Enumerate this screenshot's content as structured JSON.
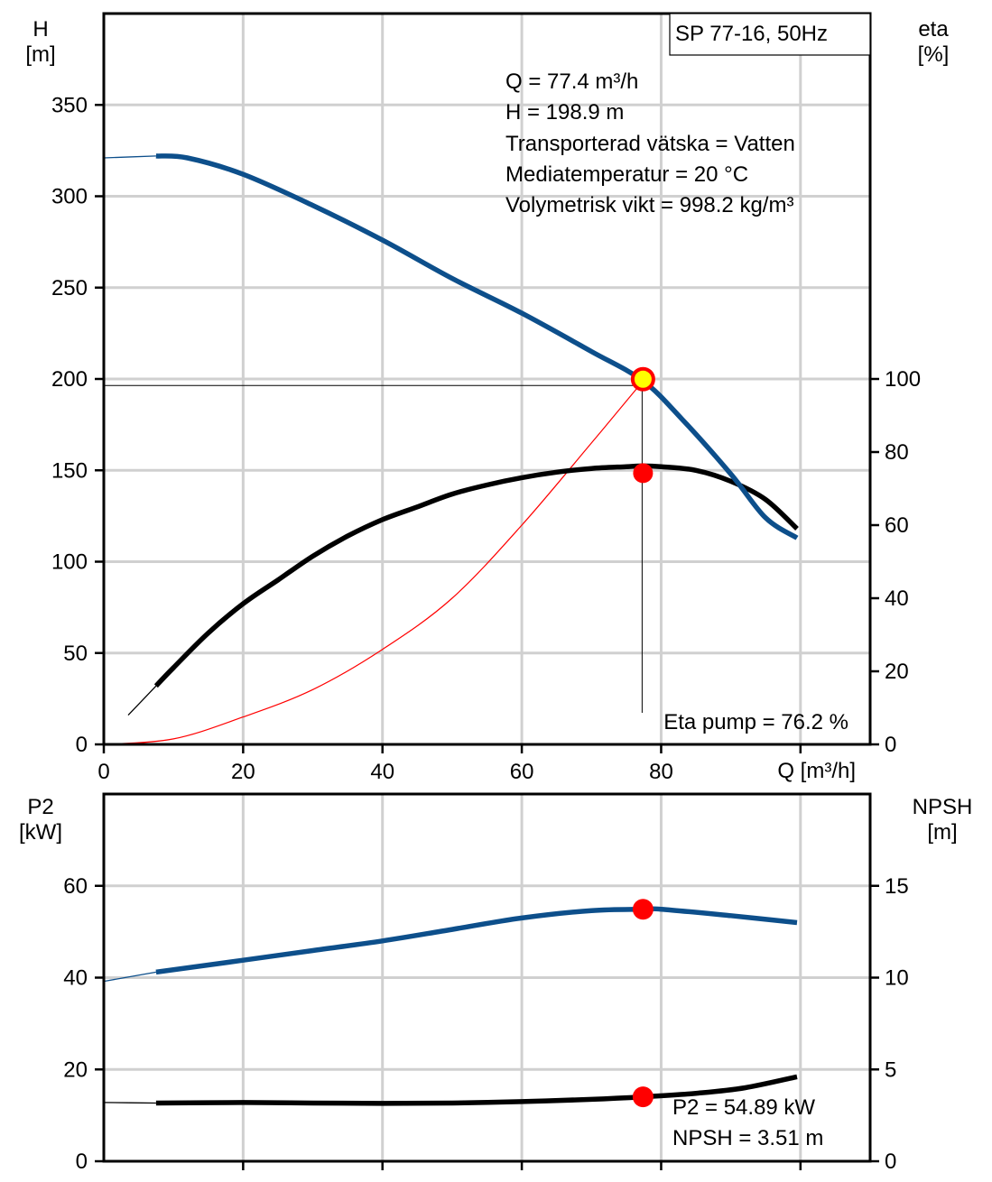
{
  "colors": {
    "head": "#0d4f8b",
    "eta": "#000000",
    "system": "#ff0000",
    "marker": "#ff0000",
    "marker_fill": "#ffff00",
    "grid": "#d0d0d0"
  },
  "chart_data": [
    {
      "type": "line",
      "title": "SP 77-16, 50Hz",
      "xlabel": "Q [m³/h]",
      "ylabel": "H\n[m]",
      "ylabel_top": "H",
      "ylabel_unit": "[m]",
      "ylabel2_top": "eta",
      "ylabel2_unit": "[%]",
      "xlim": [
        0,
        110
      ],
      "ylim": [
        0,
        400
      ],
      "y2lim": [
        0,
        200
      ],
      "xticks": [
        "0",
        "20",
        "40",
        "60",
        "80"
      ],
      "xtick_values": [
        0,
        20,
        40,
        60,
        80
      ],
      "yticks": [
        "0",
        "50",
        "100",
        "150",
        "200",
        "250",
        "300",
        "350"
      ],
      "ytick_values": [
        0,
        50,
        100,
        150,
        200,
        250,
        300,
        350
      ],
      "y2ticks": [
        "0",
        "20",
        "40",
        "60",
        "80",
        "100"
      ],
      "y2tick_values": [
        0,
        20,
        40,
        60,
        80,
        100
      ],
      "grid": true,
      "series": [
        {
          "name": "H (head)",
          "axis": "left",
          "values": [
            [
              7.5,
              322
            ],
            [
              12,
              321
            ],
            [
              20,
              312
            ],
            [
              30,
              295
            ],
            [
              40,
              276
            ],
            [
              50,
              255
            ],
            [
              60,
              236
            ],
            [
              70,
              215
            ],
            [
              77.4,
              198.9
            ],
            [
              83,
              178
            ],
            [
              90,
              148
            ],
            [
              95,
              124
            ],
            [
              99.5,
              113
            ]
          ]
        },
        {
          "name": "H extrapolated",
          "axis": "left",
          "values": [
            [
              0,
              321
            ],
            [
              7.5,
              322
            ]
          ]
        },
        {
          "name": "eta",
          "axis": "right",
          "values": [
            [
              7.5,
              16
            ],
            [
              10,
              21
            ],
            [
              15,
              30.5
            ],
            [
              20,
              38.5
            ],
            [
              25,
              45
            ],
            [
              30,
              51.5
            ],
            [
              35,
              57
            ],
            [
              40,
              61.5
            ],
            [
              45,
              65
            ],
            [
              50,
              68.5
            ],
            [
              55,
              71
            ],
            [
              60,
              73
            ],
            [
              65,
              74.5
            ],
            [
              70,
              75.5
            ],
            [
              75,
              76
            ],
            [
              77.4,
              76.2
            ],
            [
              80,
              76
            ],
            [
              85,
              75
            ],
            [
              90,
              72
            ],
            [
              95,
              67
            ],
            [
              99.5,
              59
            ]
          ]
        },
        {
          "name": "eta extrapolated",
          "axis": "right",
          "values": [
            [
              3.5,
              8
            ],
            [
              7.5,
              16
            ]
          ]
        },
        {
          "name": "system curve",
          "axis": "left",
          "values": [
            [
              0,
              0
            ],
            [
              10,
              3
            ],
            [
              20,
              15
            ],
            [
              30,
              30
            ],
            [
              40,
              52
            ],
            [
              50,
              80
            ],
            [
              60,
              120
            ],
            [
              70,
              165
            ],
            [
              77.4,
              198.9
            ]
          ]
        }
      ],
      "operating_point": {
        "q": 77.4,
        "h": 198.9,
        "eta": 76.2
      },
      "annotations": {
        "q": "Q = 77.4 m³/h",
        "h": "H = 198.9 m",
        "fluid": "Transporterad vätska = Vatten",
        "temp": "Mediatemperatur = 20 °C",
        "density": "Volymetrisk vikt = 998.2 kg/m³",
        "eta": "Eta pump = 76.2 %"
      }
    },
    {
      "type": "line",
      "title": "",
      "xlabel": "",
      "ylabel_top": "P2",
      "ylabel_unit": "[kW]",
      "ylabel2_top": "NPSH",
      "ylabel2_unit": "[m]",
      "xlim": [
        0,
        110
      ],
      "ylim": [
        0,
        80
      ],
      "y2lim": [
        0,
        20
      ],
      "yticks": [
        "0",
        "20",
        "40",
        "60"
      ],
      "ytick_values": [
        0,
        20,
        40,
        60
      ],
      "y2ticks": [
        "0",
        "5",
        "10",
        "15"
      ],
      "y2tick_values": [
        0,
        5,
        10,
        15
      ],
      "grid": true,
      "series": [
        {
          "name": "P2",
          "axis": "left",
          "values": [
            [
              7.5,
              41.2
            ],
            [
              20,
              43.8
            ],
            [
              30,
              45.9
            ],
            [
              40,
              48
            ],
            [
              50,
              50.5
            ],
            [
              60,
              53
            ],
            [
              70,
              54.6
            ],
            [
              77.4,
              54.89
            ],
            [
              80,
              54.9
            ],
            [
              90,
              53.5
            ],
            [
              99.5,
              52
            ]
          ]
        },
        {
          "name": "P2 extrapolated",
          "axis": "left",
          "values": [
            [
              0,
              39.2
            ],
            [
              7.5,
              41.2
            ]
          ]
        },
        {
          "name": "NPSH",
          "axis": "right",
          "values": [
            [
              7.5,
              3.17
            ],
            [
              20,
              3.2
            ],
            [
              30,
              3.17
            ],
            [
              40,
              3.15
            ],
            [
              50,
              3.17
            ],
            [
              60,
              3.25
            ],
            [
              70,
              3.37
            ],
            [
              77.4,
              3.51
            ],
            [
              85,
              3.7
            ],
            [
              92,
              4
            ],
            [
              99.5,
              4.6
            ]
          ]
        },
        {
          "name": "NPSH extrapolated",
          "axis": "right",
          "values": [
            [
              0,
              3.2
            ],
            [
              7.5,
              3.17
            ]
          ]
        }
      ],
      "operating_point": {
        "q": 77.4,
        "p2": 54.89,
        "npsh": 3.51
      },
      "annotations": {
        "p2": "P2 = 54.89 kW",
        "npsh": "NPSH = 3.51 m"
      }
    }
  ]
}
